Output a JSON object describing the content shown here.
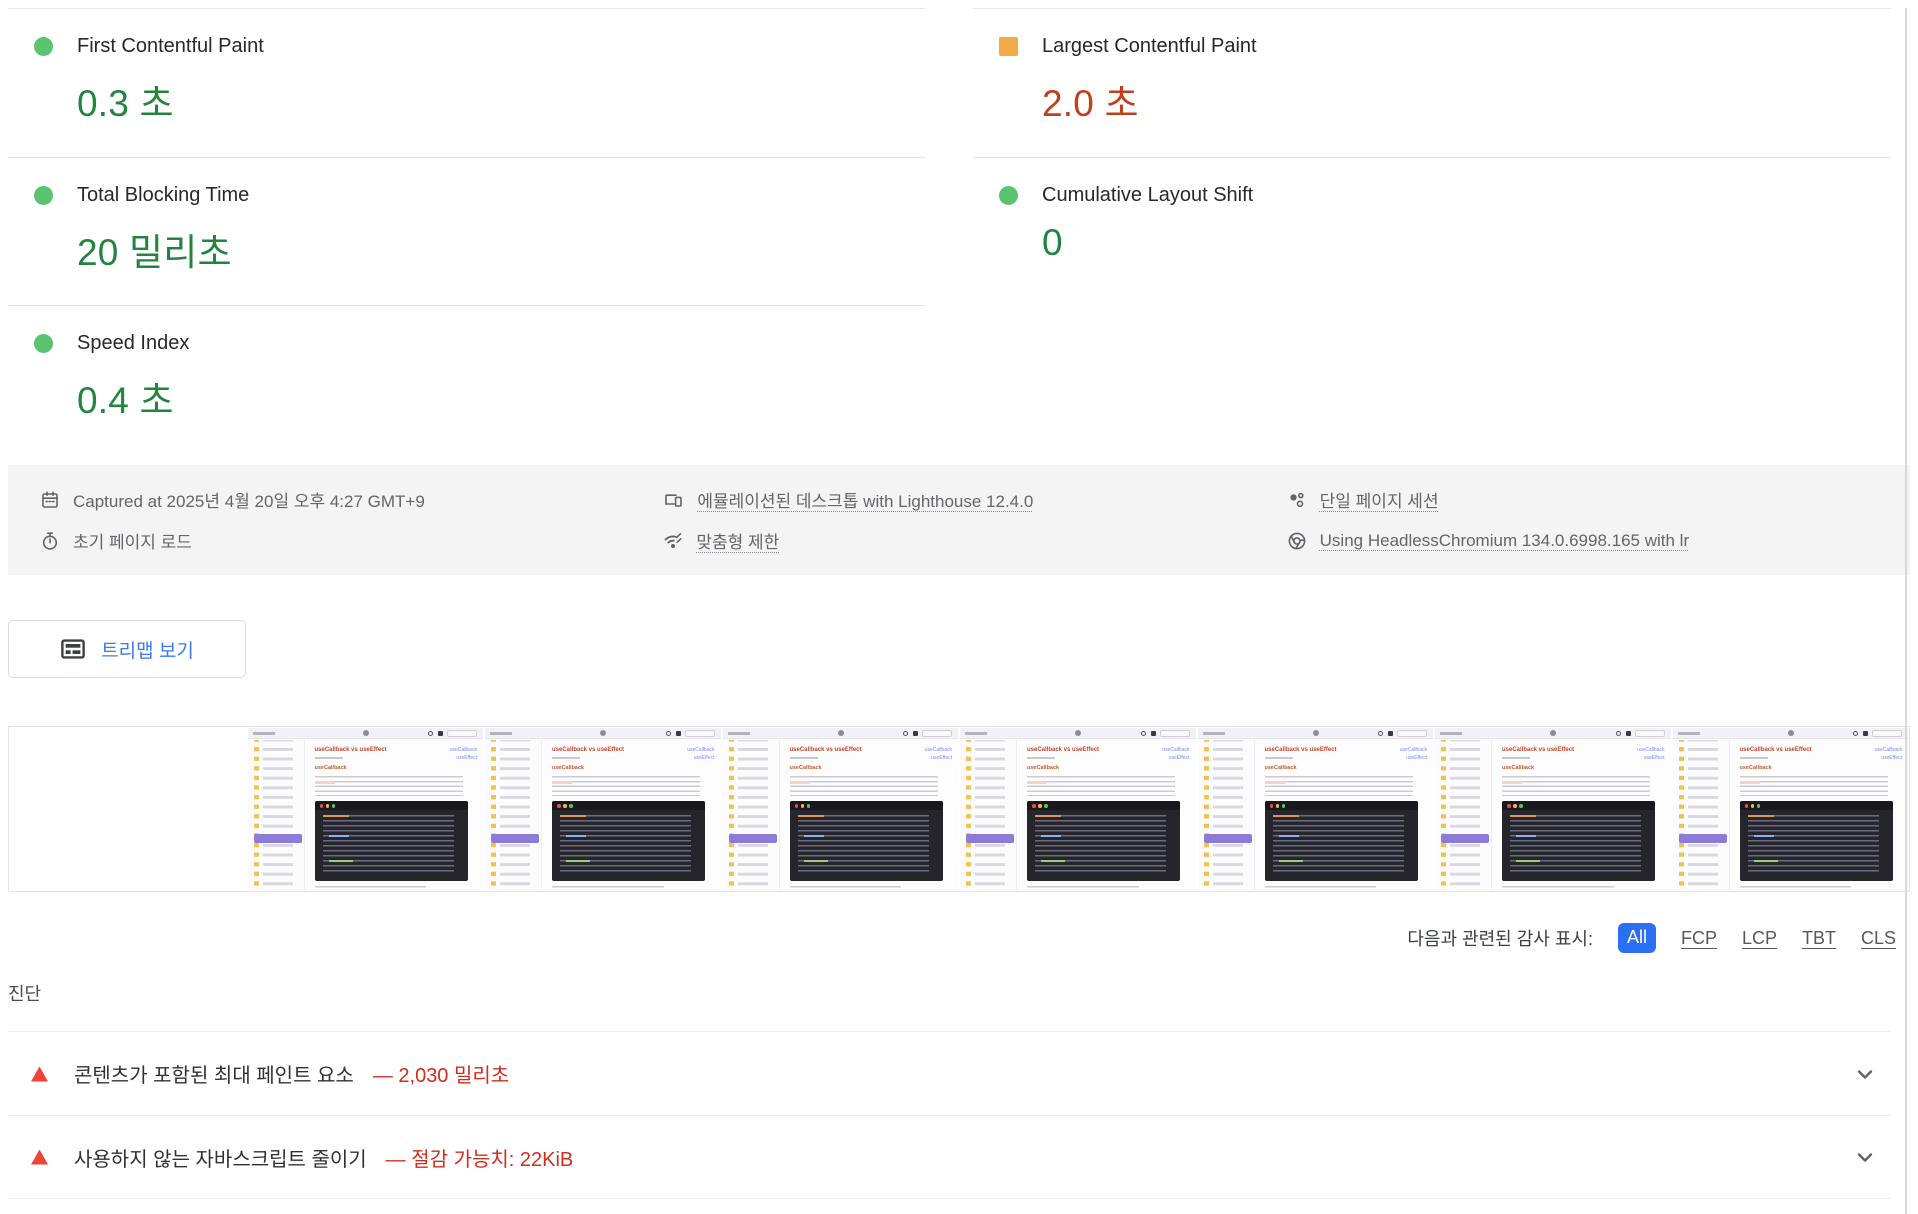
{
  "colors": {
    "pass_icon": "#5bc470",
    "pass_text": "#23843e",
    "average_icon": "#f2ab47",
    "average_text": "#bf3f1e",
    "fail_icon": "#ee4336",
    "fail_text": "#cf2d1e",
    "chip_selected_bg": "#2b70f3",
    "treemap_link": "#3d79f2",
    "capture_bar_bg": "#f4f4f5"
  },
  "metrics": {
    "fcp": {
      "label": "First Contentful Paint",
      "value": "0.3 초",
      "rating": "pass"
    },
    "lcp": {
      "label": "Largest Contentful Paint",
      "value": "2.0 초",
      "rating": "average"
    },
    "tbt": {
      "label": "Total Blocking Time",
      "value": "20 밀리초",
      "rating": "pass"
    },
    "cls": {
      "label": "Cumulative Layout Shift",
      "value": "0",
      "rating": "pass"
    },
    "si": {
      "label": "Speed Index",
      "value": "0.4 초",
      "rating": "pass"
    }
  },
  "capture_info": {
    "captured_at": "Captured at 2025년 4월 20일 오후 4:27 GMT+9",
    "emulation": "에뮬레이션된 데스크톱 with Lighthouse 12.4.0",
    "session": "단일 페이지 세션",
    "page_load": "초기 페이지 로드",
    "throttling": "맞춤형 제한",
    "chromium": "Using HeadlessChromium 134.0.6998.165 with lr"
  },
  "treemap_button": {
    "label": "트리맵 보기"
  },
  "filmstrip": {
    "frames_total": 8,
    "first_frame_blank": true,
    "thumb": {
      "title": "useCallback vs useEffect",
      "subtitle": "useCallback",
      "link1": "useCallback",
      "link2": "useEffect"
    }
  },
  "filter": {
    "label": "다음과 관련된 감사 표시:",
    "chips": [
      {
        "label": "All",
        "selected": true
      },
      {
        "label": "FCP",
        "selected": false
      },
      {
        "label": "LCP",
        "selected": false
      },
      {
        "label": "TBT",
        "selected": false
      },
      {
        "label": "CLS",
        "selected": false
      }
    ]
  },
  "diagnostics": {
    "heading": "진단",
    "audits": [
      {
        "title": "콘텐츠가 포함된 최대 페인트 요소",
        "detail": "— 2,030 밀리초"
      },
      {
        "title": "사용하지 않는 자바스크립트 줄이기",
        "detail": "— 절감 가능치: 22KiB"
      }
    ]
  }
}
